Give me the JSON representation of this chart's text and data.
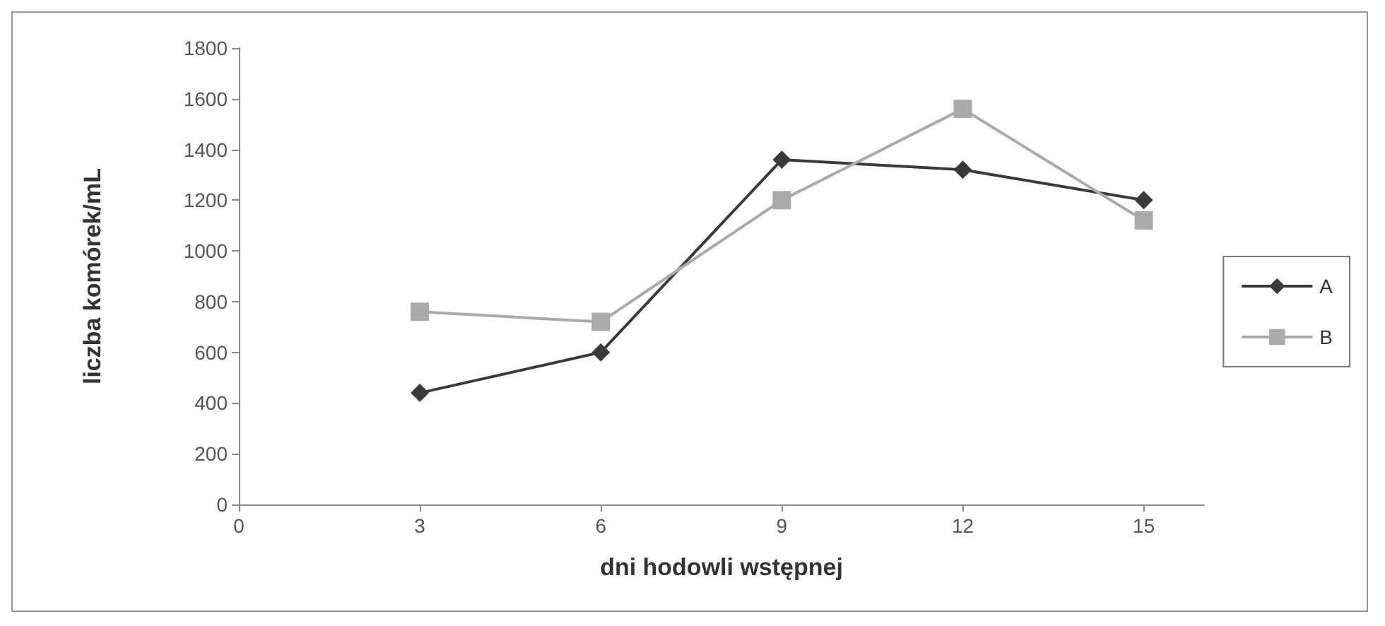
{
  "chart_data": {
    "type": "line",
    "xlabel": "dni hodowli wstępnej",
    "ylabel": "liczba komórek/mL",
    "x": [
      3,
      6,
      9,
      12,
      15
    ],
    "series": [
      {
        "name": "A",
        "color": "#3a3a3a",
        "marker": "diamond",
        "values": [
          440,
          600,
          1360,
          1320,
          1200
        ]
      },
      {
        "name": "B",
        "color": "#aaaaaa",
        "marker": "square",
        "values": [
          760,
          720,
          1200,
          1560,
          1120
        ]
      }
    ],
    "xlim": [
      0,
      16
    ],
    "xticks": [
      0,
      3,
      6,
      9,
      12,
      15
    ],
    "ylim": [
      0,
      1800
    ],
    "yticks": [
      0,
      200,
      400,
      600,
      800,
      1000,
      1200,
      1400,
      1600,
      1800
    ],
    "grid": false,
    "legend": "right",
    "line_style": "solid"
  }
}
